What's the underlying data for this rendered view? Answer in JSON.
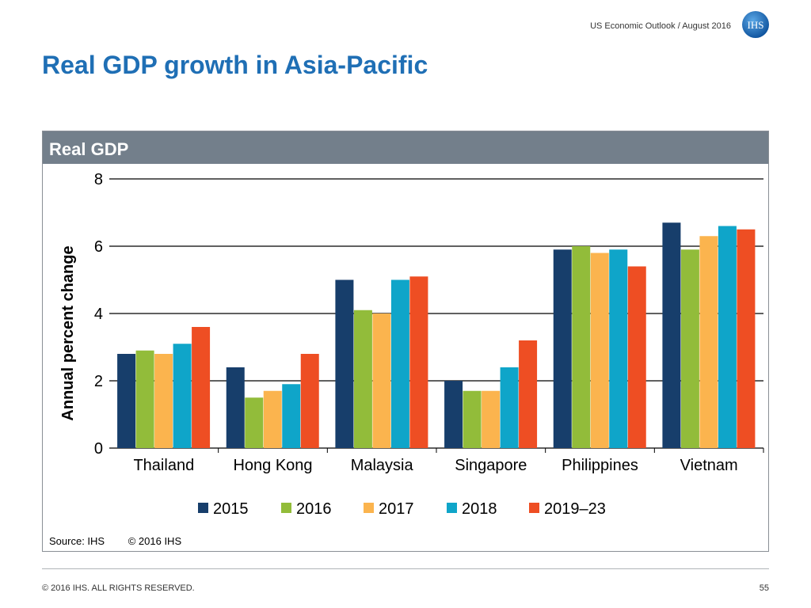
{
  "header": {
    "publication": "US Economic Outlook / August 2016",
    "logo_text": "IHS"
  },
  "page_title": "Real GDP growth in Asia-Pacific",
  "panel_title": "Real GDP",
  "chart_data": {
    "type": "bar",
    "title": "Real GDP",
    "xlabel": "",
    "ylabel": "Annual percent change",
    "ylim": [
      0,
      8
    ],
    "yticks": [
      0,
      2,
      4,
      6,
      8
    ],
    "grid": true,
    "legend_position": "bottom",
    "categories": [
      "Thailand",
      "Hong Kong",
      "Malaysia",
      "Singapore",
      "Philippines",
      "Vietnam"
    ],
    "series": [
      {
        "name": "2015",
        "color": "#173e6b",
        "values": [
          2.8,
          2.4,
          5.0,
          2.0,
          5.9,
          6.7
        ]
      },
      {
        "name": "2016",
        "color": "#92bc3a",
        "values": [
          2.9,
          1.5,
          4.1,
          1.7,
          6.0,
          5.9
        ]
      },
      {
        "name": "2017",
        "color": "#fbb44e",
        "values": [
          2.8,
          1.7,
          4.0,
          1.7,
          5.8,
          6.3
        ]
      },
      {
        "name": "2018",
        "color": "#0fa5c9",
        "values": [
          3.1,
          1.9,
          5.0,
          2.4,
          5.9,
          6.6
        ]
      },
      {
        "name": "2019–23",
        "color": "#ee4e23",
        "values": [
          3.6,
          2.8,
          5.1,
          3.2,
          5.4,
          6.5
        ]
      }
    ]
  },
  "source": {
    "label": "Source: IHS",
    "copyright": "© 2016 IHS"
  },
  "footer": {
    "copyright": "© 2016 IHS. ALL RIGHTS RESERVED.",
    "page_number": "55"
  }
}
